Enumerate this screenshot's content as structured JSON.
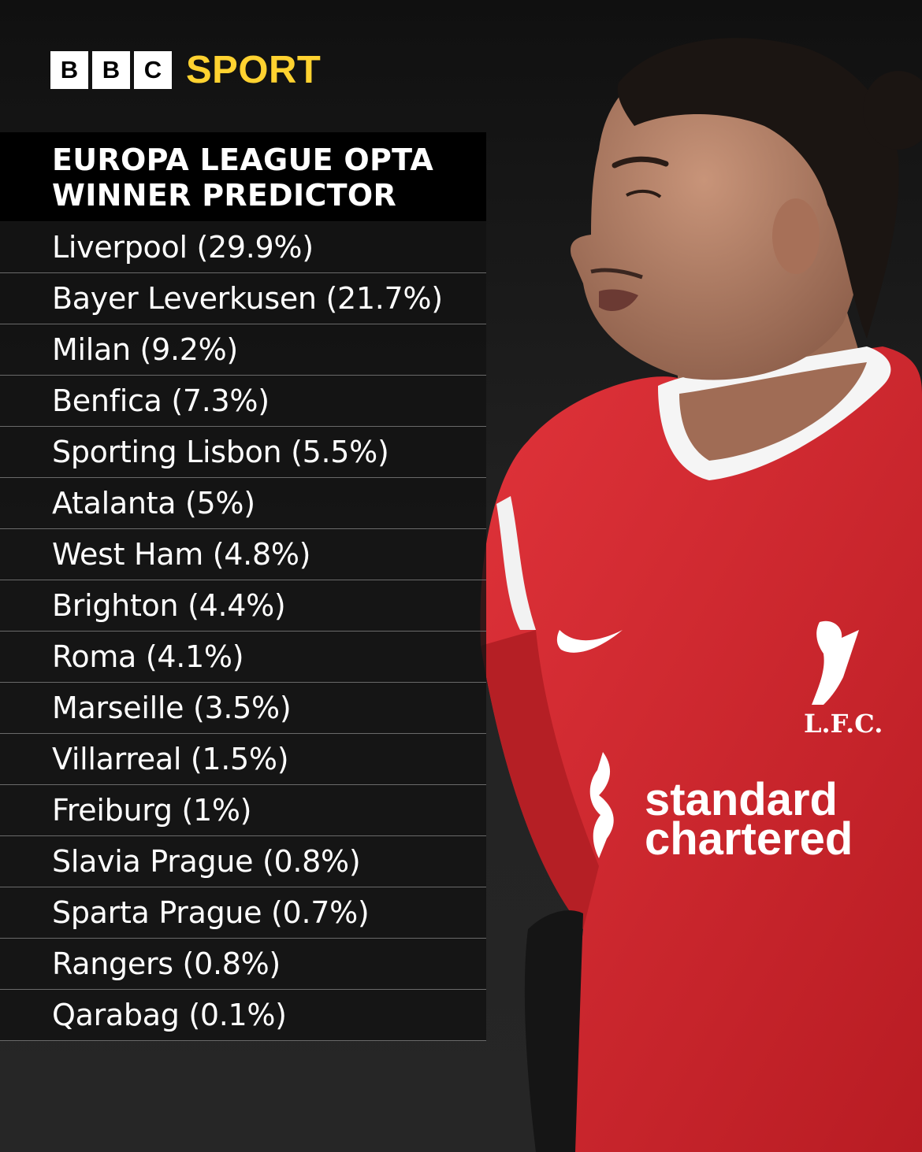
{
  "brand": {
    "blocks": [
      "B",
      "B",
      "C"
    ],
    "sport_label": "SPORT",
    "accent_color": "#ffd230"
  },
  "title": {
    "line1": "EUROPA LEAGUE OPTA",
    "line2": "WINNER PREDICTOR"
  },
  "predictions": [
    "Liverpool (29.9%)",
    "Bayer Leverkusen (21.7%)",
    "Milan (9.2%)",
    "Benfica (7.3%)",
    "Sporting Lisbon (5.5%)",
    "Atalanta (5%)",
    "West Ham (4.8%)",
    "Brighton (4.4%)",
    "Roma (4.1%)",
    "Marseille (3.5%)",
    "Villarreal (1.5%)",
    "Freiburg (1%)",
    "Slavia Prague (0.8%)",
    "Sparta Prague (0.7%)",
    "Rangers (0.8%)",
    "Qarabag (0.1%)"
  ],
  "photo": {
    "shirt_color": "#d3242b",
    "crest_text": "L.F.C.",
    "sponsor_line1": "standard",
    "sponsor_line2": "chartered"
  }
}
